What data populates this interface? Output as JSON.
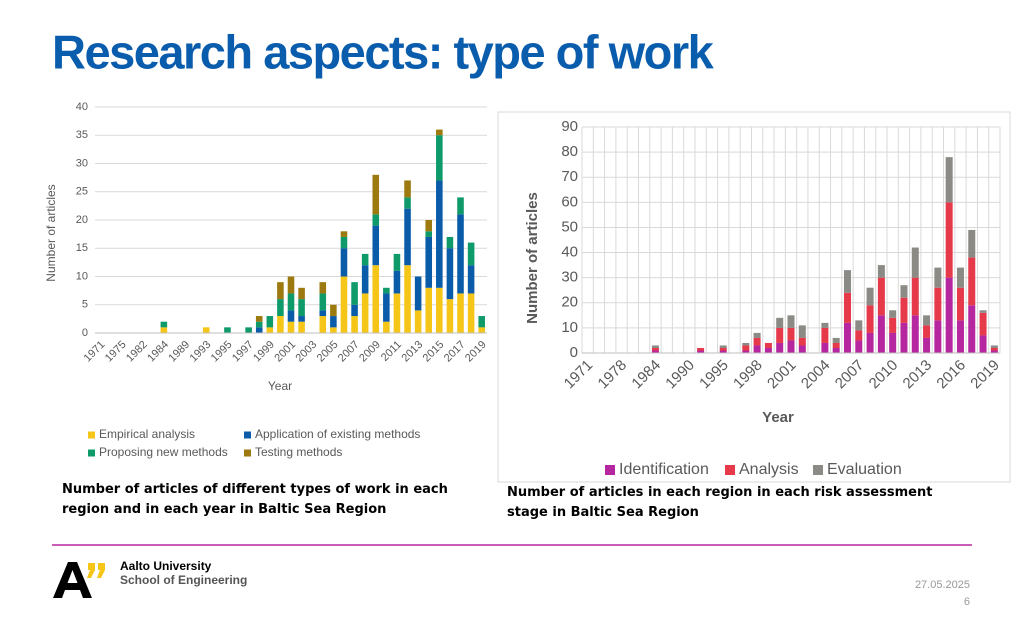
{
  "title": "Research aspects: type of work",
  "chart_data": [
    {
      "type": "bar",
      "stacked": true,
      "xlabel": "Year",
      "ylabel": "Number of articles",
      "categories": [
        "1971",
        null,
        "1975",
        null,
        "1982",
        null,
        "1984",
        null,
        "1989",
        null,
        "1993",
        null,
        "1995",
        null,
        "1997",
        null,
        "1999",
        null,
        "2001",
        null,
        "2003",
        null,
        "2005",
        null,
        "2007",
        null,
        "2009",
        null,
        "2011",
        null,
        "2013",
        null,
        "2015",
        null,
        "2017",
        null,
        "2019"
      ],
      "series": [
        {
          "name": "Empirical analysis",
          "color": "#f5c518",
          "values": [
            0,
            0,
            0,
            0,
            0,
            0,
            1,
            0,
            0,
            0,
            1,
            0,
            0,
            0,
            0,
            0,
            1,
            3,
            2,
            2,
            0,
            3,
            1,
            10,
            3,
            7,
            12,
            2,
            7,
            12,
            4,
            8,
            8,
            6,
            7,
            7,
            1
          ]
        },
        {
          "name": "Application of existing methods",
          "color": "#0a5ca8",
          "values": [
            0,
            0,
            0,
            0,
            0,
            0,
            0,
            0,
            0,
            0,
            0,
            0,
            0,
            0,
            0,
            1,
            0,
            0,
            2,
            1,
            0,
            1,
            2,
            5,
            2,
            5,
            7,
            5,
            4,
            10,
            6,
            9,
            19,
            9,
            14,
            5,
            0
          ]
        },
        {
          "name": "Proposing new methods",
          "color": "#0f9a6a",
          "values": [
            0,
            0,
            0,
            0,
            0,
            0,
            1,
            0,
            0,
            0,
            0,
            0,
            1,
            0,
            1,
            1,
            2,
            3,
            3,
            3,
            0,
            3,
            0,
            2,
            4,
            2,
            2,
            1,
            3,
            2,
            0,
            1,
            8,
            2,
            3,
            4,
            2
          ]
        },
        {
          "name": "Testing methods",
          "color": "#9c7a0f",
          "values": [
            0,
            0,
            0,
            0,
            0,
            0,
            0,
            0,
            0,
            0,
            0,
            0,
            0,
            0,
            0,
            1,
            0,
            3,
            3,
            2,
            0,
            2,
            2,
            1,
            0,
            0,
            7,
            0,
            0,
            3,
            0,
            2,
            1,
            0,
            0,
            0,
            0
          ]
        }
      ],
      "ylim": [
        0,
        40
      ],
      "yticks": [
        0,
        5,
        10,
        15,
        20,
        25,
        30,
        35,
        40
      ],
      "grid": true,
      "legend": "bottom"
    },
    {
      "type": "bar",
      "stacked": true,
      "xlabel": "Year",
      "ylabel": "Number of articles",
      "categories": [
        "1971",
        null,
        null,
        "1978",
        null,
        null,
        "1984",
        null,
        null,
        "1990",
        null,
        null,
        "1995",
        null,
        null,
        "1998",
        null,
        null,
        "2001",
        null,
        null,
        "2004",
        null,
        null,
        "2007",
        null,
        null,
        "2010",
        null,
        null,
        "2013",
        null,
        null,
        "2016",
        null,
        null,
        "2019"
      ],
      "series": [
        {
          "name": "Identification",
          "color": "#b5269f",
          "values": [
            0,
            0,
            0,
            0,
            0,
            0,
            1,
            0,
            0,
            0,
            1,
            0,
            1,
            0,
            1,
            3,
            2,
            4,
            5,
            3,
            0,
            4,
            2,
            12,
            5,
            8,
            15,
            8,
            12,
            15,
            6,
            13,
            30,
            13,
            19,
            7,
            1
          ]
        },
        {
          "name": "Analysis",
          "color": "#e6394a",
          "values": [
            0,
            0,
            0,
            0,
            0,
            0,
            1,
            0,
            0,
            0,
            1,
            0,
            1,
            0,
            2,
            3,
            2,
            6,
            5,
            3,
            0,
            6,
            2,
            12,
            4,
            11,
            15,
            6,
            10,
            15,
            5,
            13,
            30,
            13,
            19,
            9,
            1
          ]
        },
        {
          "name": "Evaluation",
          "color": "#8c8a84",
          "values": [
            0,
            0,
            0,
            0,
            0,
            0,
            1,
            0,
            0,
            0,
            0,
            0,
            1,
            0,
            1,
            2,
            0,
            4,
            5,
            5,
            0,
            2,
            2,
            9,
            4,
            7,
            5,
            3,
            5,
            12,
            4,
            8,
            18,
            8,
            11,
            1,
            1
          ]
        }
      ],
      "ylim": [
        0,
        90
      ],
      "yticks": [
        0,
        10,
        20,
        30,
        40,
        50,
        60,
        70,
        80,
        90
      ],
      "grid": true,
      "xgrid": true,
      "legend": "bottom"
    }
  ],
  "captions": [
    "Number of articles of different types of work in each region and in each year in Baltic Sea Region",
    "Number of articles in each region in each risk assessment stage in Baltic Sea Region"
  ],
  "footer": {
    "university": "Aalto University",
    "school": "School of Engineering",
    "date": "27.05.2025",
    "page": "6"
  }
}
